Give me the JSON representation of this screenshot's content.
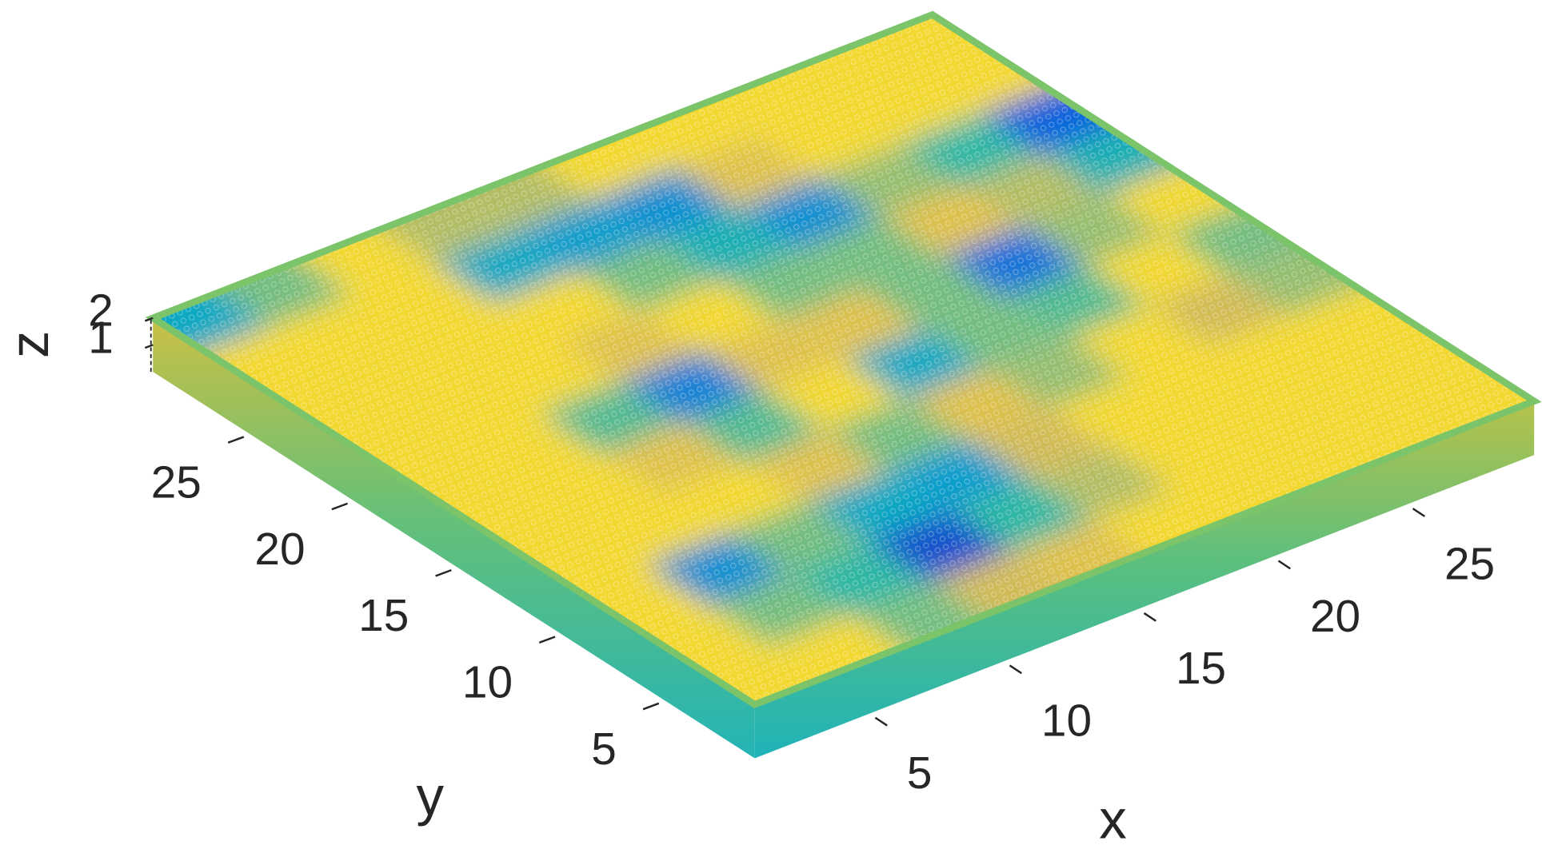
{
  "chart_data": {
    "type": "scatter3d",
    "xlabel": "x",
    "ylabel": "y",
    "zlabel": "z",
    "xlim": [
      0,
      29
    ],
    "ylim": [
      0,
      29
    ],
    "zlim": [
      0,
      2
    ],
    "xticks": [
      5,
      10,
      15,
      20,
      25
    ],
    "yticks": [
      5,
      10,
      15,
      20,
      25
    ],
    "zticks": [
      1,
      2
    ],
    "clim": [
      0,
      1
    ],
    "colormap": [
      "#352a87",
      "#0f5cdd",
      "#1481d6",
      "#06a4ca",
      "#2eb7a4",
      "#87bf77",
      "#d1bb59",
      "#f5c93a",
      "#f2e22a"
    ],
    "x": [
      1,
      4,
      7,
      10,
      13,
      16,
      19,
      22,
      25,
      28
    ],
    "y": [
      1,
      4,
      7,
      10,
      13,
      16,
      19,
      22,
      25,
      28
    ],
    "c": [
      [
        0.95,
        0.95,
        0.6,
        0.75,
        0.8,
        0.95,
        0.95,
        0.95,
        0.95,
        0.95
      ],
      [
        0.95,
        0.6,
        0.5,
        0.1,
        0.5,
        0.7,
        0.95,
        0.95,
        0.95,
        0.95
      ],
      [
        0.95,
        0.3,
        0.6,
        0.4,
        0.35,
        0.75,
        0.95,
        0.95,
        0.95,
        0.95
      ],
      [
        0.95,
        0.95,
        0.95,
        0.8,
        0.6,
        0.8,
        0.65,
        0.95,
        0.75,
        0.65
      ],
      [
        0.95,
        0.95,
        0.8,
        0.55,
        0.95,
        0.4,
        0.6,
        0.55,
        0.95,
        0.6
      ],
      [
        0.95,
        0.95,
        0.55,
        0.25,
        0.8,
        0.8,
        0.6,
        0.2,
        0.65,
        0.95
      ],
      [
        0.95,
        0.95,
        0.95,
        0.8,
        0.95,
        0.6,
        0.6,
        0.8,
        0.7,
        0.45
      ],
      [
        0.95,
        0.95,
        0.95,
        0.95,
        0.6,
        0.45,
        0.3,
        0.65,
        0.5,
        0.15
      ],
      [
        0.95,
        0.95,
        0.95,
        0.4,
        0.35,
        0.3,
        0.8,
        0.95,
        0.95,
        0.95
      ],
      [
        0.4,
        0.6,
        0.95,
        0.7,
        0.7,
        0.95,
        0.95,
        0.95,
        0.95,
        0.95
      ]
    ]
  }
}
